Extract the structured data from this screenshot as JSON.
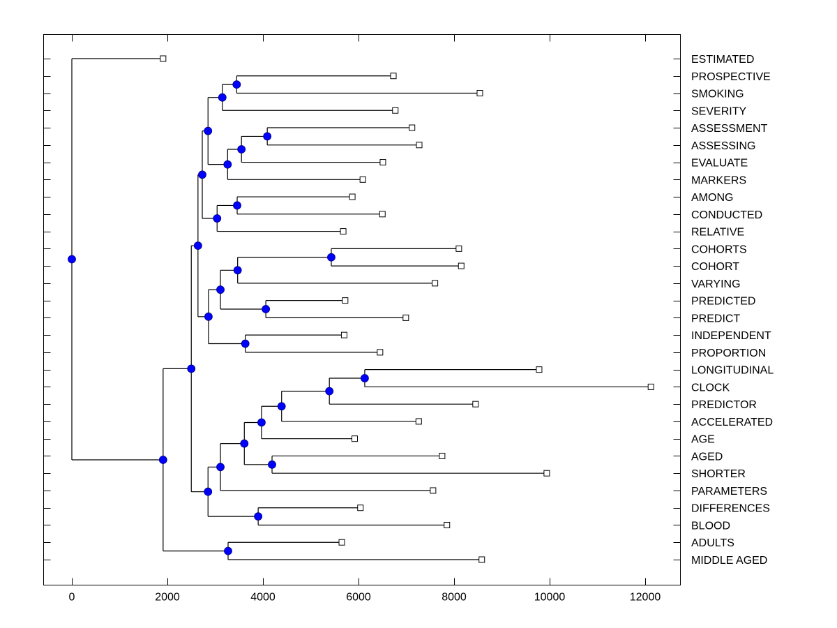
{
  "chart_data": {
    "type": "dendrogram",
    "title": "",
    "xlabel": "",
    "ylabel": "",
    "xlim": [
      -600,
      12700
    ],
    "xticks": [
      0,
      2000,
      4000,
      6000,
      8000,
      10000,
      12000
    ],
    "xtick_labels": [
      "0",
      "2000",
      "4000",
      "6000",
      "8000",
      "10000",
      "12000"
    ],
    "grid": false,
    "leaf_label_side": "right",
    "colors": {
      "node_fill": "#0000ff",
      "line": "#000000",
      "leaf_marker_fill": "#ffffff"
    },
    "leaves": [
      {
        "label": "ESTIMATED",
        "value": 1910
      },
      {
        "label": "PROSPECTIVE",
        "value": 6730
      },
      {
        "label": "SMOKING",
        "value": 8540
      },
      {
        "label": "SEVERITY",
        "value": 6770
      },
      {
        "label": "ASSESSMENT",
        "value": 7120
      },
      {
        "label": "ASSESSING",
        "value": 7270
      },
      {
        "label": "EVALUATE",
        "value": 6510
      },
      {
        "label": "MARKERS",
        "value": 6090
      },
      {
        "label": "AMONG",
        "value": 5870
      },
      {
        "label": "CONDUCTED",
        "value": 6500
      },
      {
        "label": "RELATIVE",
        "value": 5680
      },
      {
        "label": "COHORTS",
        "value": 8100
      },
      {
        "label": "COHORT",
        "value": 8150
      },
      {
        "label": "VARYING",
        "value": 7600
      },
      {
        "label": "PREDICTED",
        "value": 5720
      },
      {
        "label": "PREDICT",
        "value": 6990
      },
      {
        "label": "INDEPENDENT",
        "value": 5700
      },
      {
        "label": "PROPORTION",
        "value": 6450
      },
      {
        "label": "LONGITUDINAL",
        "value": 9780
      },
      {
        "label": "CLOCK",
        "value": 12120
      },
      {
        "label": "PREDICTOR",
        "value": 8450
      },
      {
        "label": "ACCELERATED",
        "value": 7260
      },
      {
        "label": "AGE",
        "value": 5920
      },
      {
        "label": "AGED",
        "value": 7750
      },
      {
        "label": "SHORTER",
        "value": 9940
      },
      {
        "label": "PARAMETERS",
        "value": 7560
      },
      {
        "label": "DIFFERENCES",
        "value": 6040
      },
      {
        "label": "BLOOD",
        "value": 7850
      },
      {
        "label": "ADULTS",
        "value": 5650
      },
      {
        "label": "MIDDLE AGED",
        "value": 8580
      }
    ],
    "tree": {
      "value": 0,
      "children": [
        {
          "leaf": 0
        },
        {
          "value": 1910,
          "children": [
            {
              "value": 2500,
              "children": [
                {
                  "value": 2640,
                  "children": [
                    {
                      "value": 2730,
                      "children": [
                        {
                          "value": 2850,
                          "children": [
                            {
                              "value": 3150,
                              "children": [
                                {
                                  "value": 3450,
                                  "children": [
                                    {
                                      "leaf": 1
                                    },
                                    {
                                      "leaf": 2
                                    }
                                  ]
                                },
                                {
                                  "leaf": 3
                                }
                              ]
                            },
                            {
                              "value": 3260,
                              "children": [
                                {
                                  "value": 3550,
                                  "children": [
                                    {
                                      "value": 4090,
                                      "children": [
                                        {
                                          "leaf": 4
                                        },
                                        {
                                          "leaf": 5
                                        }
                                      ]
                                    },
                                    {
                                      "leaf": 6
                                    }
                                  ]
                                },
                                {
                                  "leaf": 7
                                }
                              ]
                            }
                          ]
                        },
                        {
                          "value": 3040,
                          "children": [
                            {
                              "value": 3460,
                              "children": [
                                {
                                  "leaf": 8
                                },
                                {
                                  "leaf": 9
                                }
                              ]
                            },
                            {
                              "leaf": 10
                            }
                          ]
                        }
                      ]
                    },
                    {
                      "value": 2860,
                      "children": [
                        {
                          "value": 3110,
                          "children": [
                            {
                              "value": 3470,
                              "children": [
                                {
                                  "value": 5430,
                                  "children": [
                                    {
                                      "leaf": 11
                                    },
                                    {
                                      "leaf": 12
                                    }
                                  ]
                                },
                                {
                                  "leaf": 13
                                }
                              ]
                            },
                            {
                              "value": 4060,
                              "children": [
                                {
                                  "leaf": 14
                                },
                                {
                                  "leaf": 15
                                }
                              ]
                            }
                          ]
                        },
                        {
                          "value": 3630,
                          "children": [
                            {
                              "leaf": 16
                            },
                            {
                              "leaf": 17
                            }
                          ]
                        }
                      ]
                    }
                  ]
                },
                {
                  "value": 2850,
                  "children": [
                    {
                      "value": 3110,
                      "children": [
                        {
                          "value": 3610,
                          "children": [
                            {
                              "value": 3970,
                              "children": [
                                {
                                  "value": 4390,
                                  "children": [
                                    {
                                      "value": 5390,
                                      "children": [
                                        {
                                          "value": 6130,
                                          "children": [
                                            {
                                              "leaf": 18
                                            },
                                            {
                                              "leaf": 19
                                            }
                                          ]
                                        },
                                        {
                                          "leaf": 20
                                        }
                                      ]
                                    },
                                    {
                                      "leaf": 21
                                    }
                                  ]
                                },
                                {
                                  "leaf": 22
                                }
                              ]
                            },
                            {
                              "value": 4190,
                              "children": [
                                {
                                  "leaf": 23
                                },
                                {
                                  "leaf": 24
                                }
                              ]
                            }
                          ]
                        },
                        {
                          "leaf": 25
                        }
                      ]
                    },
                    {
                      "value": 3900,
                      "children": [
                        {
                          "leaf": 26
                        },
                        {
                          "leaf": 27
                        }
                      ]
                    }
                  ]
                }
              ]
            },
            {
              "value": 3270,
              "children": [
                {
                  "leaf": 28
                },
                {
                  "leaf": 29
                }
              ]
            }
          ]
        }
      ]
    }
  }
}
